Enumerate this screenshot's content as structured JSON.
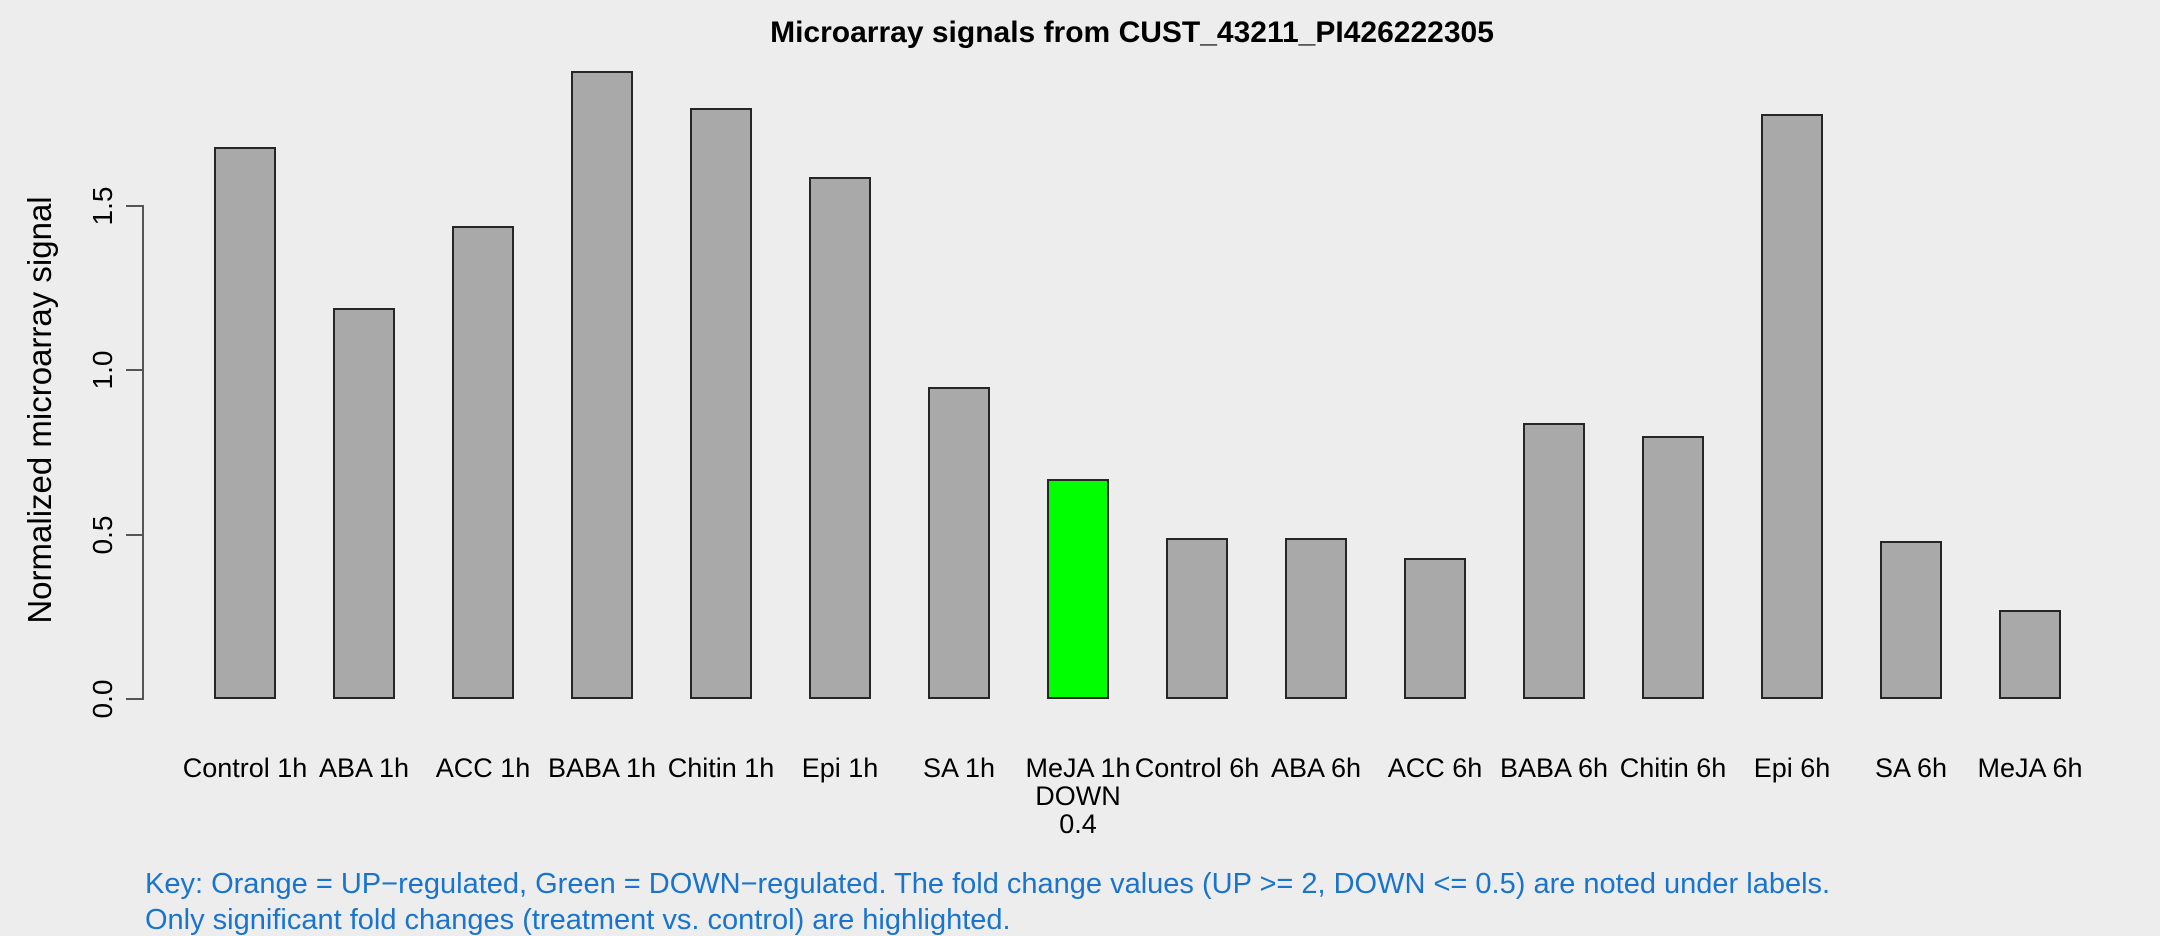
{
  "title": "Microarray signals from CUST_43211_PI426222305",
  "y_axis": {
    "label": "Normalized microarray signal",
    "ticks": [
      "0.0",
      "0.5",
      "1.0",
      "1.5"
    ]
  },
  "key": {
    "line1": "Key: Orange = UP−regulated, Green = DOWN−regulated. The fold change values (UP >= 2, DOWN <= 0.5) are noted under labels.",
    "line2": "Only significant fold changes (treatment vs. control) are highlighted.",
    "text_color": "#1874CD"
  },
  "colors": {
    "background": "#EDEDED",
    "bar_default": "#A9A9A9",
    "bar_down_regulated": "#00FF00",
    "bar_border": "#262626",
    "axis": "#555555",
    "key_text": "#1874CD"
  },
  "chart_data": {
    "type": "bar",
    "title": "Microarray signals from CUST_43211_PI426222305",
    "xlabel": "",
    "ylabel": "Normalized microarray signal",
    "ylim": [
      0,
      1.95
    ],
    "yticks": [
      0.0,
      0.5,
      1.0,
      1.5
    ],
    "grid": false,
    "legend_position": "none",
    "bar_color": "#A9A9A9",
    "categories": [
      "Control 1h",
      "ABA 1h",
      "ACC 1h",
      "BABA 1h",
      "Chitin 1h",
      "Epi 1h",
      "SA 1h",
      "MeJA 1h",
      "Control 6h",
      "ABA 6h",
      "ACC 6h",
      "BABA 6h",
      "Chitin 6h",
      "Epi 6h",
      "SA 6h",
      "MeJA 6h"
    ],
    "values": [
      1.68,
      1.19,
      1.44,
      1.91,
      1.8,
      1.59,
      0.95,
      0.67,
      0.49,
      0.49,
      0.43,
      0.84,
      0.8,
      1.78,
      0.48,
      0.27
    ],
    "highlighted": [
      {
        "index": 7,
        "category": "MeJA 1h",
        "direction": "DOWN",
        "fold_change": "0.4",
        "color": "#00FF00"
      }
    ]
  }
}
